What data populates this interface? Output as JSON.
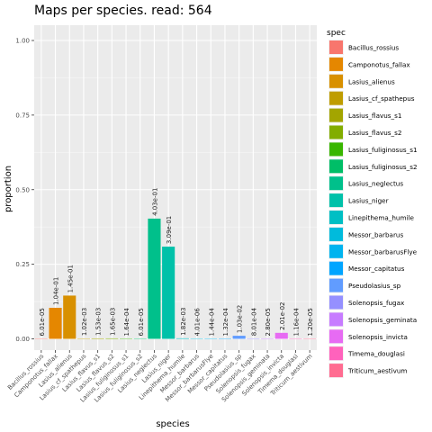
{
  "chart_data": {
    "type": "bar",
    "title": "Maps per species. read: 564",
    "xlabel": "species",
    "ylabel": "proportion",
    "ylim": [
      0,
      1
    ],
    "yticks": [
      0.0,
      0.25,
      0.5,
      0.75,
      1.0
    ],
    "ytick_labels": [
      "0.00",
      "0.25",
      "0.50",
      "0.75",
      "1.00"
    ],
    "grid": true,
    "legend": {
      "title": "spec",
      "position": "right"
    },
    "categories": [
      "Bacillus_rossius",
      "Camponotus_fallax",
      "Lasius_alienus",
      "Lasius_cf_spathepus",
      "Lasius_flavus_s1",
      "Lasius_flavus_s2",
      "Lasius_fuliginosus_s1",
      "Lasius_fuliginosus_s2",
      "Lasius_neglectus",
      "Lasius_niger",
      "Linepithema_humile",
      "Messor_barbarus",
      "Messor_barbarusFlye",
      "Messor_capitatus",
      "Pseudolasius_sp",
      "Solenopsis_fugax",
      "Solenopsis_geminata",
      "Solenopsis_invicta",
      "Timema_douglasi",
      "Triticum_aestivum"
    ],
    "values": [
      6.01e-05,
      0.104,
      0.145,
      0.00102,
      0.00153,
      0.00165,
      0.000164,
      6.01e-05,
      0.403,
      0.309,
      0.00182,
      4.01e-06,
      0.000144,
      0.000132,
      0.0103,
      0.000801,
      2.8e-05,
      0.0201,
      0.000116,
      1.2e-05
    ],
    "data_labels": [
      "6.01e-05",
      "1.04e-01",
      "1.45e-01",
      "1.02e-03",
      "1.53e-03",
      "1.65e-03",
      "1.64e-04",
      "6.01e-05",
      "4.03e-01",
      "3.09e-01",
      "1.82e-03",
      "4.01e-06",
      "1.44e-04",
      "1.32e-04",
      "1.03e-02",
      "8.01e-04",
      "2.80e-05",
      "2.01e-02",
      "1.16e-04",
      "1.20e-05"
    ],
    "colors": [
      "#F8766D",
      "#E58700",
      "#C99800",
      "#A3A500",
      "#6BB100",
      "#00BA38",
      "#00BF7D",
      "#00C0AF",
      "#00BCD8",
      "#00B0F6",
      "#619CFF",
      "#B983FF",
      "#E76BF3",
      "#FD61D1",
      "#FF67A4",
      "#F8766D",
      "#E58700",
      "#C99800",
      "#A3A500",
      "#6BB100"
    ],
    "legend_colors": [
      "#F8766D",
      "#E58700",
      "#D89000",
      "#BF9D00",
      "#A3A500",
      "#82AD00",
      "#39B600",
      "#00BE67",
      "#00C08B",
      "#00C1A9",
      "#00BFC4",
      "#00BBDC",
      "#00B4EF",
      "#00A5FF",
      "#619CFF",
      "#9590FF",
      "#C77CFF",
      "#E76BF3",
      "#FF62BC",
      "#FF6C91"
    ],
    "bar_colors": [
      "#F8766D",
      "#E58700",
      "#D89000",
      "#BF9D00",
      "#A3A500",
      "#82AD00",
      "#39B600",
      "#00BE67",
      "#00C08B",
      "#00C1A9",
      "#00BFC4",
      "#00BBDC",
      "#00B4EF",
      "#00A5FF",
      "#619CFF",
      "#9590FF",
      "#C77CFF",
      "#E76BF3",
      "#FF62BC",
      "#FF6C91"
    ]
  }
}
